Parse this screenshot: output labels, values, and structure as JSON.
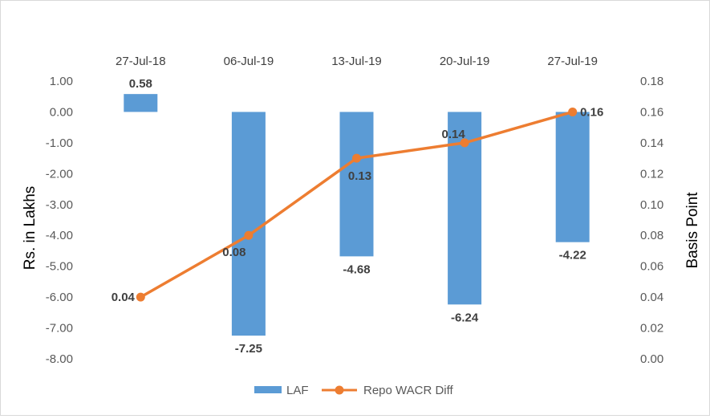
{
  "chart_data": {
    "type": "bar+line",
    "categories": [
      "27-Jul-18",
      "06-Jul-19",
      "13-Jul-19",
      "20-Jul-19",
      "27-Jul-19"
    ],
    "series": [
      {
        "name": "LAF",
        "type": "bar",
        "axis": "left",
        "values": [
          0.58,
          -7.25,
          -4.68,
          -6.24,
          -4.22
        ],
        "labels": [
          "0.58",
          "-7.25",
          "-4.68",
          "-6.24",
          "-4.22"
        ],
        "color": "#5b9bd5"
      },
      {
        "name": "Repo WACR Diff",
        "type": "line",
        "axis": "right",
        "values": [
          0.04,
          0.08,
          0.13,
          0.14,
          0.16
        ],
        "labels": [
          "0.04",
          "0.08",
          "0.13",
          "0.14",
          "0.16"
        ],
        "color": "#ed7d31"
      }
    ],
    "ylabel": "Rs. in Lakhs",
    "y2label": "Basis Point",
    "ylim": [
      -8,
      1
    ],
    "y2lim": [
      0,
      0.18
    ],
    "y_ticks": [
      "1.00",
      "0.00",
      "-1.00",
      "-2.00",
      "-3.00",
      "-4.00",
      "-5.00",
      "-6.00",
      "-7.00",
      "-8.00"
    ],
    "y2_ticks": [
      "0.18",
      "0.16",
      "0.14",
      "0.12",
      "0.10",
      "0.08",
      "0.06",
      "0.04",
      "0.02",
      "0.00"
    ],
    "category_axis_position": "top",
    "grid": false,
    "legend_position": "bottom"
  }
}
